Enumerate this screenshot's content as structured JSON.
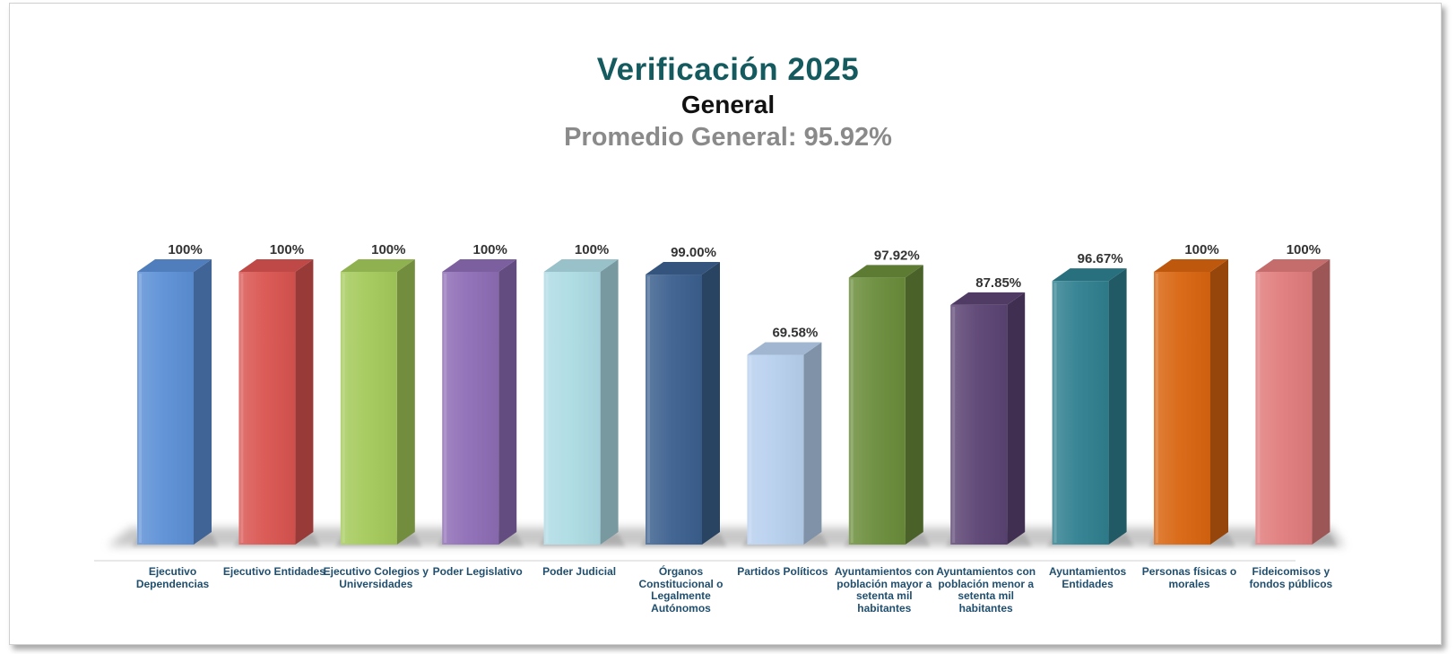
{
  "chart_data": {
    "type": "bar",
    "title": "Verificación 2025",
    "subtitle": "General",
    "average_label": "Promedio General: 95.92%",
    "categories": [
      "Ejecutivo Dependencias",
      "Ejecutivo Entidades",
      "Ejecutivo Colegios y Universidades",
      "Poder Legislativo",
      "Poder Judicial",
      "Órganos Constitucional o Legalmente Autónomos",
      "Partidos Políticos",
      "Ayuntamientos con población mayor a setenta mil habitantes",
      "Ayuntamientos con población menor a setenta mil habitantes",
      "Ayuntamientos Entidades",
      "Personas físicas o morales",
      "Fideicomisos y fondos públicos"
    ],
    "values": [
      100,
      100,
      100,
      100,
      100,
      99.0,
      69.58,
      97.92,
      87.85,
      96.67,
      100,
      100
    ],
    "data_labels": [
      "100%",
      "100%",
      "100%",
      "100%",
      "100%",
      "99.00%",
      "69.58%",
      "97.92%",
      "87.85%",
      "96.67%",
      "100%",
      "100%"
    ],
    "colors": [
      "#5b8fd6",
      "#d9534f",
      "#a4c95a",
      "#8d6cb5",
      "#addbe4",
      "#3b5f8e",
      "#b7d0ee",
      "#6a8c3a",
      "#5b4373",
      "#2f7f8f",
      "#d8640f",
      "#e07b7b"
    ],
    "ylim": [
      0,
      100
    ],
    "grid": false,
    "legend": "none"
  }
}
